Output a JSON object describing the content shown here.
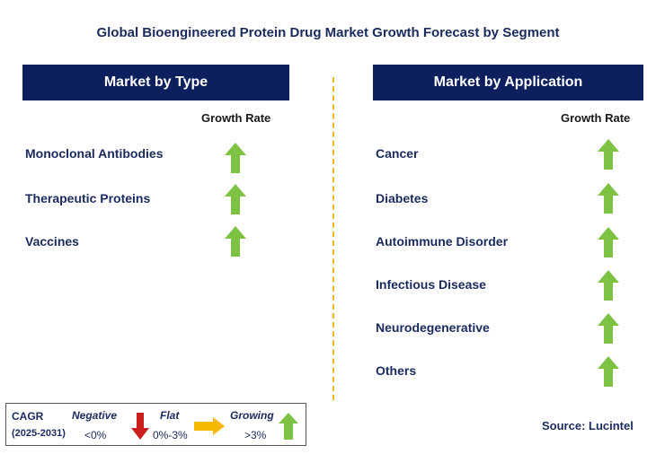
{
  "title": "Global Bioengineered Protein Drug Market Growth Forecast by Segment",
  "left_panel": {
    "header": "Market by Type",
    "growth_label": "Growth Rate",
    "items": [
      "Monoclonal Antibodies",
      "Therapeutic Proteins",
      "Vaccines"
    ]
  },
  "right_panel": {
    "header": "Market by Application",
    "growth_label": "Growth Rate",
    "items": [
      "Cancer",
      "Diabetes",
      "Autoimmune Disorder",
      "Infectious Disease",
      "Neurodegenerative",
      "Others"
    ]
  },
  "legend": {
    "cagr": "CAGR",
    "period": "(2025-2031)",
    "negative": "Negative",
    "negative_range": "<0%",
    "flat": "Flat",
    "flat_range": "0%-3%",
    "growing": "Growing",
    "growing_range": ">3%"
  },
  "source": "Source: Lucintel",
  "colors": {
    "header_bg": "#0d1f5c",
    "up_arrow": "#7dc242",
    "down_arrow": "#cc1f1f",
    "flat_arrow": "#f5b800",
    "divider": "#f0b429"
  },
  "icons": {
    "growth": "up-arrow-icon",
    "negative": "down-arrow-icon",
    "flat": "right-arrow-icon"
  }
}
